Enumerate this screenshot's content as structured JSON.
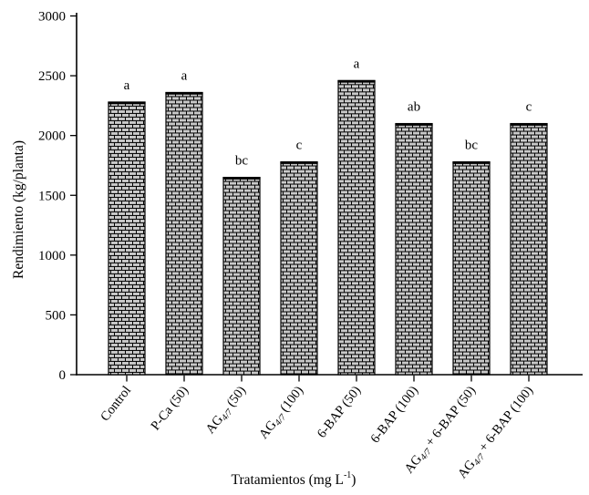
{
  "figure": {
    "background": "#ffffff"
  },
  "chart_data": {
    "type": "bar",
    "title": "",
    "ylabel": "Rendimiento (kg/planta)",
    "xlabel": "Tratamientos (mg L-1)",
    "xlabel_parts": {
      "prefix": "Tratamientos (mg L",
      "superscript": "-1",
      "suffix": ")"
    },
    "ylim": [
      0,
      3000
    ],
    "yticks": [
      0,
      500,
      1000,
      1500,
      2000,
      2500,
      3000
    ],
    "categories": [
      {
        "label": "Control",
        "runs": [
          {
            "text": "Control"
          }
        ]
      },
      {
        "label": "P-Ca (50)",
        "runs": [
          {
            "text": "P-Ca (50)"
          }
        ]
      },
      {
        "label": "AG4/7 (50)",
        "runs": [
          {
            "text": "AG"
          },
          {
            "text": "4/7",
            "sub": true
          },
          {
            "text": " (50)"
          }
        ]
      },
      {
        "label": "AG4/7 (100)",
        "runs": [
          {
            "text": "AG"
          },
          {
            "text": "4/7",
            "sub": true
          },
          {
            "text": " (100)"
          }
        ]
      },
      {
        "label": "6-BAP (50)",
        "runs": [
          {
            "text": "6-BAP (50)"
          }
        ]
      },
      {
        "label": "6-BAP (100)",
        "runs": [
          {
            "text": "6-BAP (100)"
          }
        ]
      },
      {
        "label": "AG4/7 + 6-BAP (50)",
        "runs": [
          {
            "text": "AG"
          },
          {
            "text": "4/7",
            "sub": true
          },
          {
            "text": " + 6-BAP (50)"
          }
        ]
      },
      {
        "label": "AG4/7 + 6-BAP (100)",
        "runs": [
          {
            "text": "AG"
          },
          {
            "text": "4/7",
            "sub": true
          },
          {
            "text": " + 6-BAP (100)"
          }
        ]
      }
    ],
    "values": [
      2280,
      2360,
      1650,
      1780,
      2460,
      2100,
      1780,
      2100
    ],
    "sig_letters": [
      "a",
      "a",
      "bc",
      "c",
      "a",
      "ab",
      "bc",
      "c"
    ],
    "bar_fill": "#c9c9c9",
    "bar_pattern": "brick",
    "line_color": "#000000",
    "grid": false,
    "legend": "none"
  }
}
